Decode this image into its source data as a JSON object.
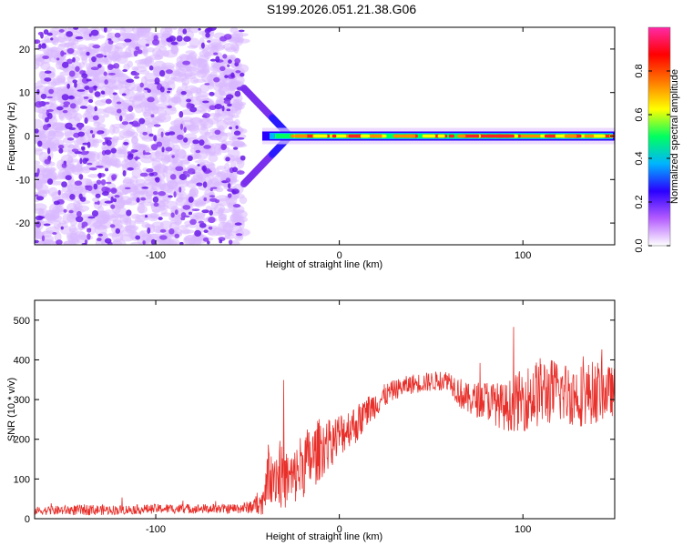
{
  "title": "S199.2026.051.21.38.G06",
  "colors": {
    "snr_line": "#e8302b",
    "axis": "#000000",
    "colormap": [
      "#ffffff",
      "#b45cff",
      "#2a00ff",
      "#00b4ff",
      "#00ff60",
      "#ffff00",
      "#ff7a00",
      "#ff0000",
      "#ff2aa8"
    ]
  },
  "chart_data": [
    {
      "type": "heatmap",
      "xlabel": "Height of straight line (km)",
      "ylabel": "Frequency (Hz)",
      "xlim": [
        -166,
        150
      ],
      "ylim": [
        -25,
        25
      ],
      "xticks": [
        -100,
        0,
        100
      ],
      "xtick_labels": [
        "-100",
        "0",
        "100"
      ],
      "yticks": [
        -20,
        -10,
        0,
        10,
        20
      ],
      "ytick_labels": [
        "-20",
        "-10",
        "0",
        "10",
        "20"
      ],
      "noise_region_x": [
        -166,
        -52
      ],
      "signal_frequency_hz": 0,
      "signal_start_x": -52,
      "colorbar": {
        "label": "Normalized spectral amplitude",
        "range": [
          0,
          1
        ],
        "ticks": [
          0.0,
          0.2,
          0.4,
          0.6,
          0.8
        ],
        "tick_labels": [
          "0.0",
          "0.2",
          "0.4",
          "0.6",
          "0.8"
        ]
      }
    },
    {
      "type": "line",
      "xlabel": "Height of straight line (km)",
      "ylabel": "SNR (10 * v/v)",
      "xlim": [
        -166,
        150
      ],
      "ylim": [
        0,
        550
      ],
      "xticks": [
        -100,
        0,
        100
      ],
      "xtick_labels": [
        "-100",
        "0",
        "100"
      ],
      "yticks": [
        0,
        100,
        200,
        300,
        400,
        500
      ],
      "ytick_labels": [
        "0",
        "100",
        "200",
        "300",
        "400",
        "500"
      ],
      "series": [
        {
          "name": "SNR",
          "x": [
            -166,
            -140,
            -120,
            -100,
            -80,
            -60,
            -50,
            -42,
            -38,
            -34,
            -30,
            -25,
            -20,
            -15,
            -10,
            -5,
            0,
            5,
            10,
            15,
            20,
            25,
            30,
            40,
            50,
            60,
            65,
            70,
            80,
            90,
            100,
            110,
            120,
            130,
            140,
            150
          ],
          "y": [
            20,
            22,
            22,
            25,
            25,
            25,
            28,
            40,
            130,
            110,
            100,
            100,
            140,
            150,
            180,
            190,
            210,
            230,
            240,
            270,
            290,
            310,
            325,
            340,
            345,
            350,
            320,
            300,
            300,
            280,
            300,
            320,
            320,
            310,
            320,
            320
          ],
          "noise": [
            10,
            14,
            12,
            12,
            12,
            12,
            15,
            30,
            90,
            80,
            80,
            70,
            90,
            80,
            80,
            60,
            60,
            50,
            50,
            40,
            35,
            30,
            25,
            25,
            25,
            25,
            40,
            40,
            50,
            60,
            80,
            90,
            80,
            80,
            80,
            60
          ]
        }
      ]
    }
  ]
}
